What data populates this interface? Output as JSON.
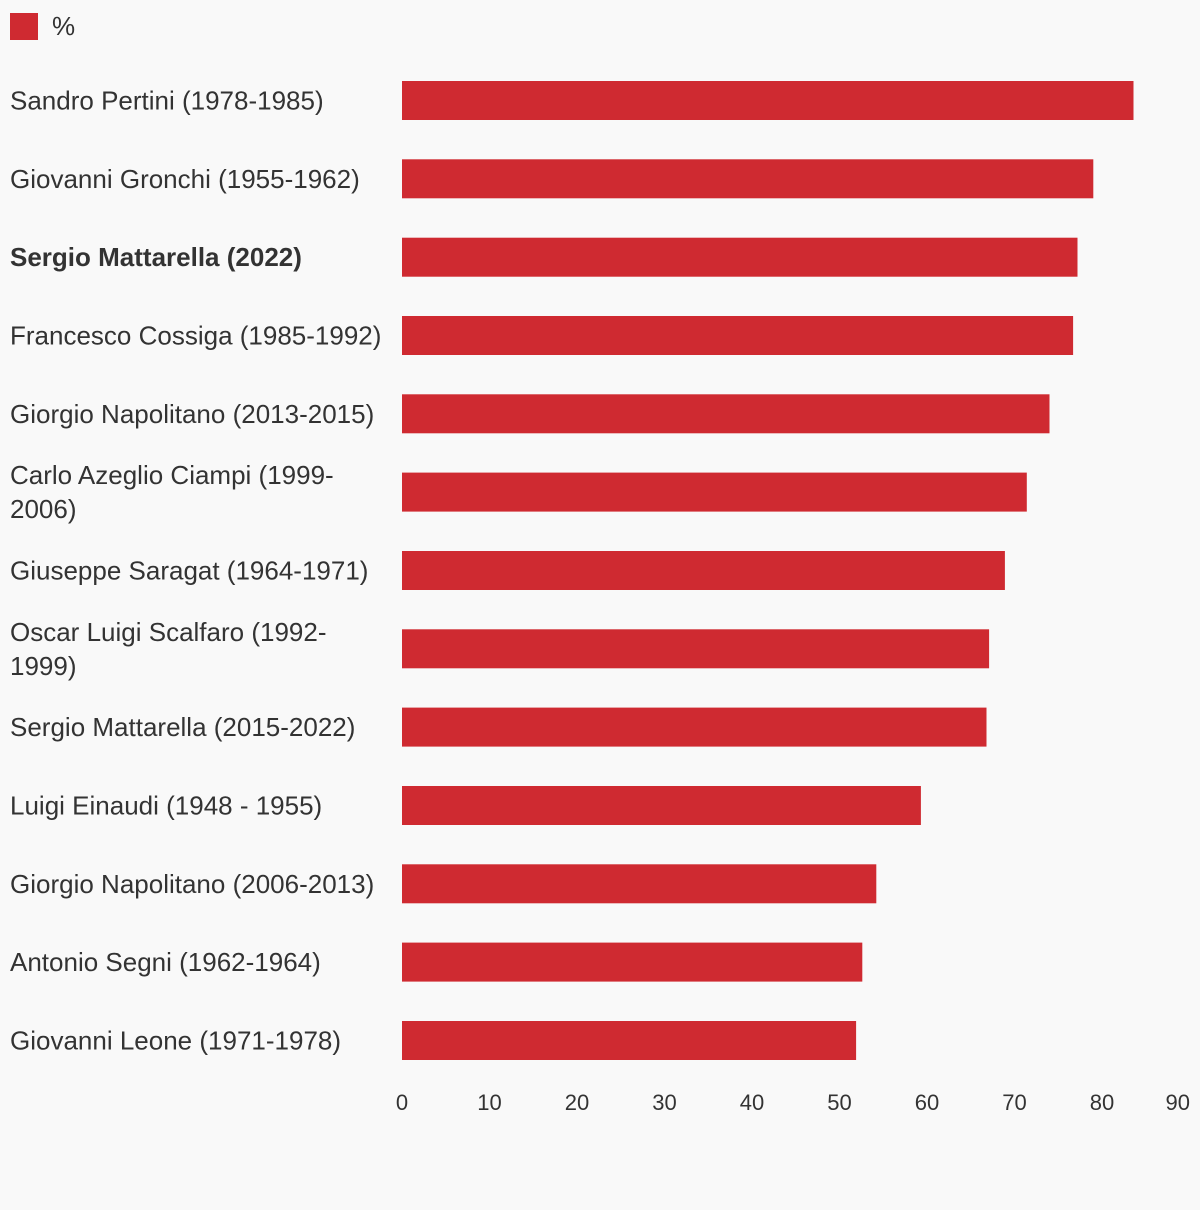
{
  "chart_data": {
    "type": "bar",
    "orientation": "horizontal",
    "legend": {
      "label": "%",
      "color": "#cf2a31",
      "placement": "top-left"
    },
    "categories": [
      "Sandro Pertini (1978-1985)",
      "Giovanni Gronchi (1955-1962)",
      "Sergio Mattarella (2022)",
      "Francesco Cossiga (1985-1992)",
      "Giorgio Napolitano (2013-2015)",
      "Carlo Azeglio Ciampi (1999-2006)",
      "Giuseppe Saragat (1964-1971)",
      "Oscar Luigi Scalfaro (1992-1999)",
      "Sergio Mattarella (2015-2022)",
      "Luigi Einaudi (1948 - 1955)",
      "Giorgio Napolitano (2006-2013)",
      "Antonio Segni (1962-1964)",
      "Giovanni Leone (1971-1978)"
    ],
    "highlighted_category": "Sergio Mattarella (2022)",
    "series": [
      {
        "name": "%",
        "color": "#cf2a31",
        "values": [
          83.6,
          79.0,
          77.2,
          76.7,
          74.0,
          71.4,
          68.9,
          67.1,
          66.8,
          59.3,
          54.2,
          52.6,
          51.9
        ]
      }
    ],
    "xlim": [
      0,
      90
    ],
    "xticks": [
      0,
      10,
      20,
      30,
      40,
      50,
      60,
      70,
      80,
      90
    ],
    "xlabel": "",
    "ylabel": "",
    "grid": false
  }
}
